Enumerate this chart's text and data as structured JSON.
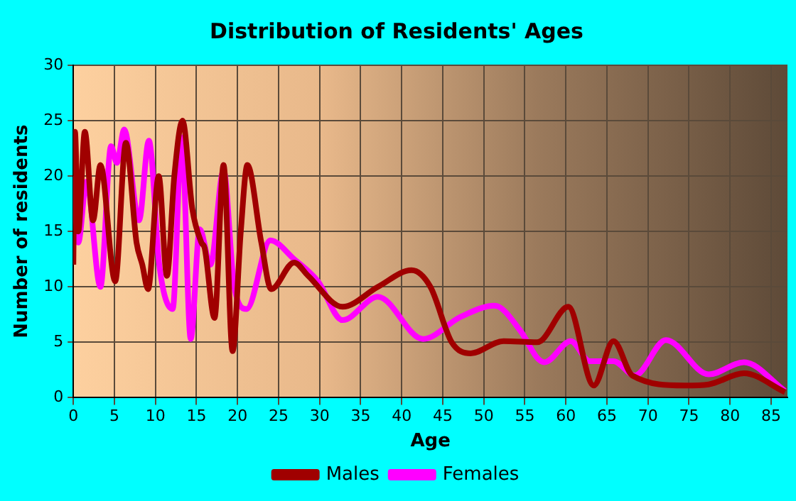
{
  "chart_data": {
    "type": "line",
    "title": "Distribution of Residents' Ages",
    "xlabel": "Age",
    "ylabel": "Number of residents",
    "series": [
      {
        "name": "Males",
        "color": "#a00000",
        "x": [
          0,
          0.2,
          0.6,
          1.4,
          2.4,
          3.3,
          5.1,
          6.4,
          7.7,
          8.4,
          9.1,
          10.4,
          11.4,
          12.3,
          13.3,
          14.5,
          15.6,
          16,
          17.2,
          18.3,
          19.4,
          20.4,
          21.2,
          22.9,
          24.1,
          26.9,
          28.6,
          32.8,
          37.1,
          41.2,
          43.5,
          46.1,
          48.4,
          52.4,
          56.5,
          57.1,
          60.3,
          63.4,
          65.8,
          68.1,
          74.5,
          77.4,
          81.7,
          86.7
        ],
        "values": [
          12,
          24,
          15,
          24,
          16,
          21,
          10.5,
          23,
          14,
          12,
          9.8,
          20,
          11,
          20,
          25,
          17,
          14,
          13.5,
          7.2,
          21,
          4.2,
          15,
          21,
          14,
          9.8,
          12.2,
          11,
          8.2,
          10,
          11.5,
          10,
          5,
          4,
          5.1,
          5,
          5.2,
          8.2,
          1.1,
          5.1,
          2,
          1.1,
          1.2,
          2.2,
          0.5
        ]
      },
      {
        "name": "Females",
        "color": "#ff00ff",
        "x": [
          0,
          0.6,
          1.6,
          3.3,
          4.6,
          5.3,
          6.2,
          8,
          9.2,
          10.5,
          12.1,
          13.2,
          14.3,
          15.4,
          16.7,
          18.3,
          19.6,
          21.1,
          24,
          26.9,
          29.8,
          32.8,
          37.1,
          42.6,
          47.2,
          51.3,
          54.5,
          56.5,
          57.4,
          60.6,
          62.9,
          65.8,
          68.4,
          72.2,
          77.4,
          81.7,
          86.7
        ],
        "values": [
          20,
          14,
          19.5,
          10,
          22.7,
          21.2,
          24.2,
          16,
          23.2,
          11.8,
          8,
          23.5,
          5.3,
          15.2,
          12,
          20.5,
          10,
          8,
          14.2,
          12.5,
          10.5,
          7,
          9.1,
          5.3,
          7.3,
          8.3,
          6,
          3.6,
          3.2,
          5.1,
          3.3,
          3.3,
          2,
          5.2,
          2.1,
          3.2,
          0.6
        ]
      }
    ],
    "xlim": [
      0,
      87
    ],
    "xticks": [
      0,
      5,
      10,
      15,
      20,
      25,
      30,
      35,
      40,
      45,
      50,
      55,
      60,
      65,
      70,
      75,
      80,
      85
    ],
    "ylim": [
      0,
      30
    ],
    "yticks": [
      0,
      5,
      10,
      15,
      20,
      25,
      30
    ],
    "grid": true,
    "legend": "bottom",
    "marker": "none",
    "line_style": "solid"
  }
}
